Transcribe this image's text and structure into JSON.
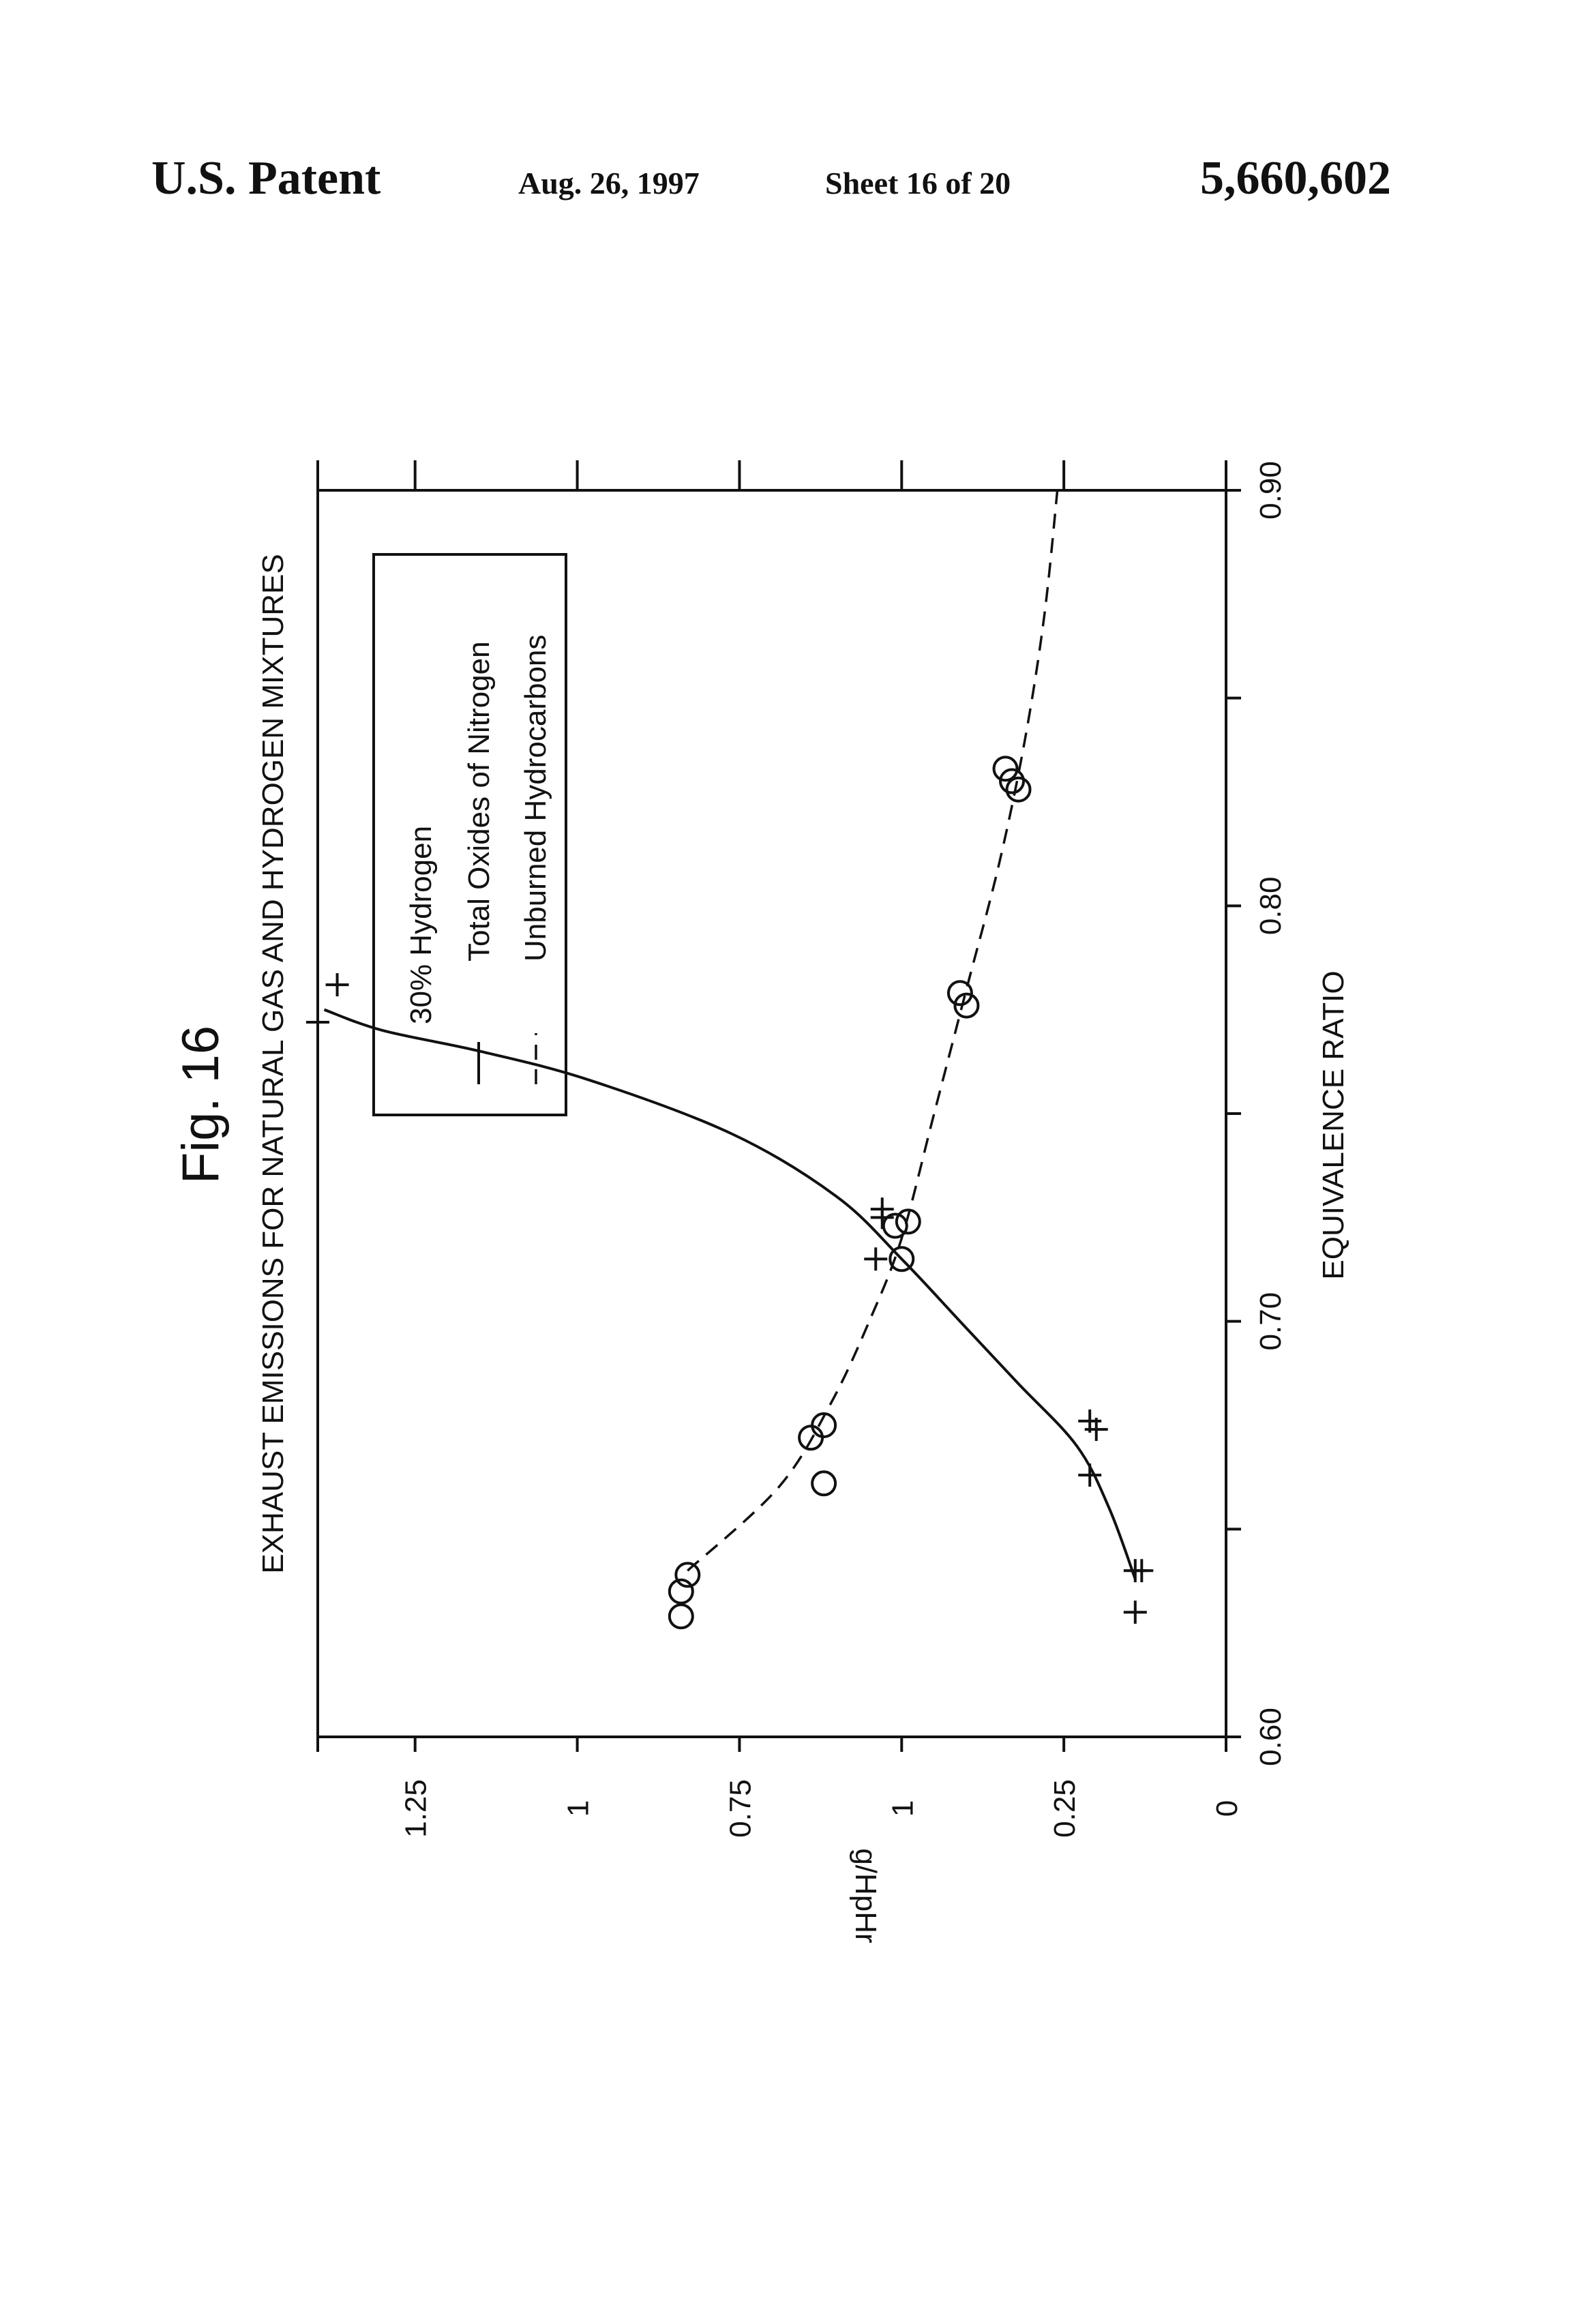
{
  "header": {
    "patent_label": "U.S. Patent",
    "date": "Aug. 26, 1997",
    "sheet": "Sheet 16 of 20",
    "patent_number": "5,660,602"
  },
  "figure_label": "Fig. 16",
  "chart_data": {
    "type": "scatter",
    "orientation": "rotated 90 degrees counter-clockwise",
    "title": "EXHAUST EMISSIONS FOR NATURAL GAS AND HYDROGEN MIXTURES",
    "xlabel": "EQUIVALENCE RATIO",
    "ylabel": "g/HpHr",
    "x_range": [
      0.6,
      0.9
    ],
    "y_range": [
      0,
      1.4
    ],
    "x_ticks": [
      0.6,
      0.65,
      0.7,
      0.75,
      0.8,
      0.85,
      0.9
    ],
    "x_tick_labels": [
      "0.60",
      "",
      "0.70",
      "",
      "0.80",
      "",
      "0.90"
    ],
    "y_ticks": [
      0,
      0.25,
      0.5,
      0.75,
      1.0,
      1.25,
      1.4
    ],
    "y_tick_labels": [
      "0",
      "0.25",
      "1",
      "0.75",
      "1",
      "1.25",
      ""
    ],
    "grid": false,
    "legend": {
      "placement": "top-right",
      "title": "30% Hydrogen",
      "entries": [
        {
          "line_style": "solid",
          "label": "Total Oxides of Nitrogen"
        },
        {
          "line_style": "dashed",
          "label": "Unburned Hydrocarbons"
        }
      ]
    },
    "series": [
      {
        "name": "Total Oxides of Nitrogen",
        "marker": "plus",
        "points": [
          {
            "x": 0.63,
            "y": 0.14
          },
          {
            "x": 0.64,
            "y": 0.13
          },
          {
            "x": 0.64,
            "y": 0.14
          },
          {
            "x": 0.663,
            "y": 0.21
          },
          {
            "x": 0.674,
            "y": 0.2
          },
          {
            "x": 0.676,
            "y": 0.21
          },
          {
            "x": 0.715,
            "y": 0.54
          },
          {
            "x": 0.725,
            "y": 0.53
          },
          {
            "x": 0.727,
            "y": 0.53
          },
          {
            "x": 0.772,
            "y": 1.4
          },
          {
            "x": 0.781,
            "y": 1.37
          }
        ],
        "fit_curve": [
          [
            0.638,
            0.14
          ],
          [
            0.655,
            0.18
          ],
          [
            0.67,
            0.23
          ],
          [
            0.685,
            0.32
          ],
          [
            0.7,
            0.41
          ],
          [
            0.715,
            0.5
          ],
          [
            0.73,
            0.6
          ],
          [
            0.745,
            0.76
          ],
          [
            0.758,
            0.98
          ],
          [
            0.765,
            1.15
          ],
          [
            0.77,
            1.3
          ],
          [
            0.775,
            1.39
          ]
        ]
      },
      {
        "name": "Unburned Hydrocarbons",
        "marker": "circle",
        "points": [
          {
            "x": 0.629,
            "y": 0.84
          },
          {
            "x": 0.635,
            "y": 0.84
          },
          {
            "x": 0.639,
            "y": 0.83
          },
          {
            "x": 0.661,
            "y": 0.62
          },
          {
            "x": 0.672,
            "y": 0.64
          },
          {
            "x": 0.675,
            "y": 0.62
          },
          {
            "x": 0.715,
            "y": 0.5
          },
          {
            "x": 0.723,
            "y": 0.51
          },
          {
            "x": 0.724,
            "y": 0.49
          },
          {
            "x": 0.776,
            "y": 0.4
          },
          {
            "x": 0.779,
            "y": 0.41
          },
          {
            "x": 0.828,
            "y": 0.32
          },
          {
            "x": 0.83,
            "y": 0.33
          },
          {
            "x": 0.833,
            "y": 0.34
          }
        ],
        "fit_curve": [
          [
            0.64,
            0.83
          ],
          [
            0.66,
            0.69
          ],
          [
            0.68,
            0.61
          ],
          [
            0.7,
            0.55
          ],
          [
            0.72,
            0.5
          ],
          [
            0.75,
            0.45
          ],
          [
            0.78,
            0.4
          ],
          [
            0.81,
            0.35
          ],
          [
            0.84,
            0.31
          ],
          [
            0.87,
            0.28
          ],
          [
            0.9,
            0.26
          ]
        ]
      }
    ]
  }
}
